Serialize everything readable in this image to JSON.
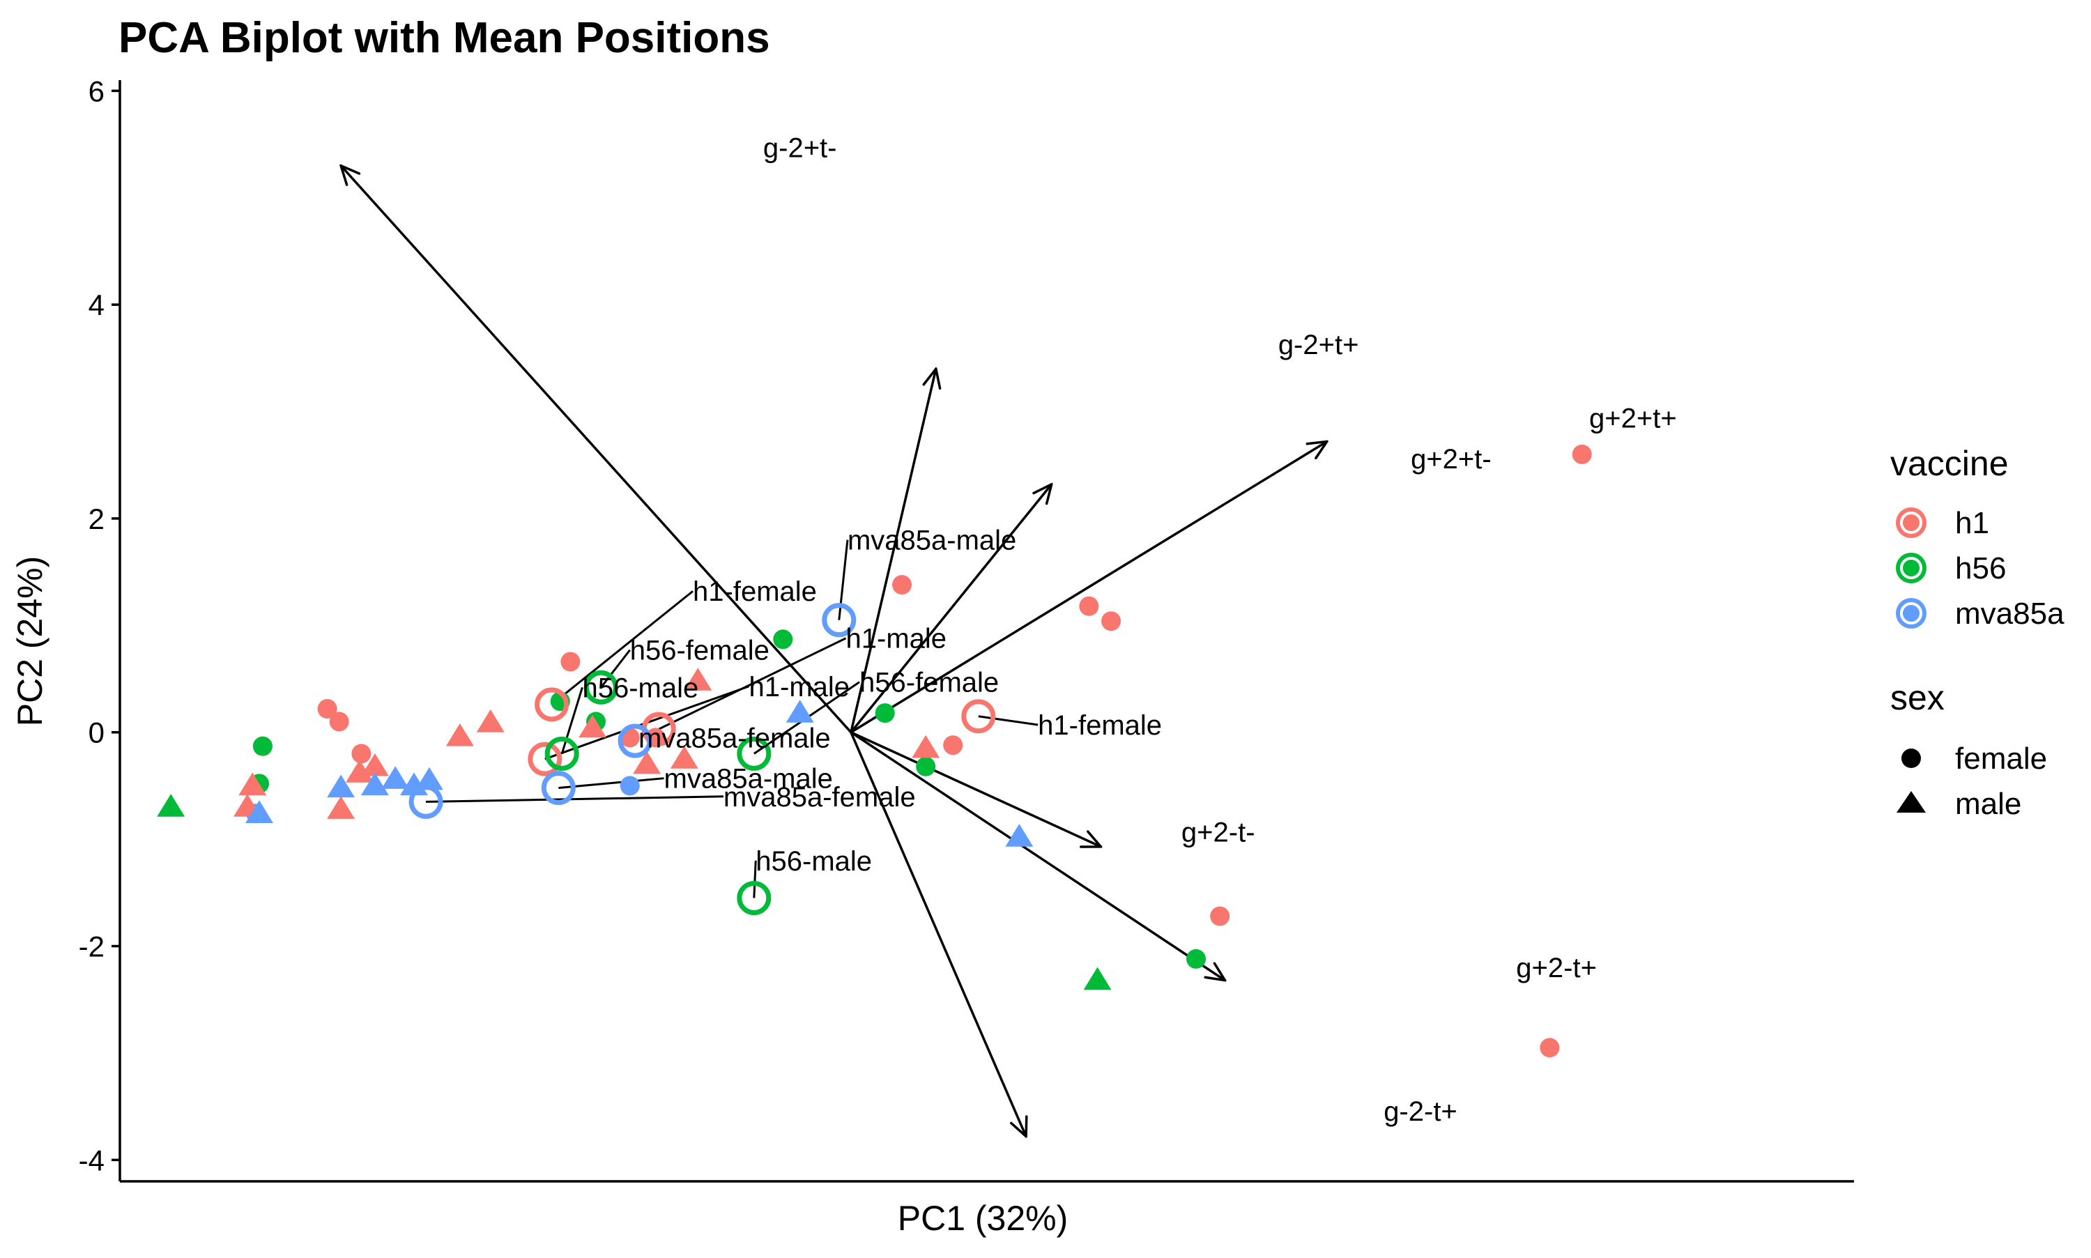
{
  "chart_data": {
    "type": "scatter",
    "title": "PCA Biplot with Mean Positions",
    "xlabel": "PC1 (32%)",
    "ylabel": "PC2 (24%)",
    "xlim": [
      -4.3,
      5.9
    ],
    "ylim": [
      -4.2,
      6.1
    ],
    "y_ticks": [
      -4,
      -2,
      0,
      2,
      4,
      6
    ],
    "x_ticks_visible": false,
    "grid": false,
    "legend_position": "right",
    "colors": {
      "h1": "#F8766D",
      "h56": "#00BA38",
      "mva85a": "#619CFF"
    },
    "legend": {
      "vaccine": {
        "title": "vaccine",
        "entries": [
          "h1",
          "h56",
          "mva85a"
        ]
      },
      "sex": {
        "title": "sex",
        "entries": [
          "female",
          "male"
        ],
        "shapes": [
          "circle",
          "triangle"
        ]
      }
    },
    "points": [
      {
        "x": 4.3,
        "y": 2.6,
        "vaccine": "h1",
        "sex": "female"
      },
      {
        "x": 0.3,
        "y": 1.38,
        "vaccine": "h1",
        "sex": "female"
      },
      {
        "x": 1.4,
        "y": 1.18,
        "vaccine": "h1",
        "sex": "female"
      },
      {
        "x": 1.53,
        "y": 1.04,
        "vaccine": "h1",
        "sex": "female"
      },
      {
        "x": -1.65,
        "y": 0.66,
        "vaccine": "h1",
        "sex": "female"
      },
      {
        "x": -3.08,
        "y": 0.22,
        "vaccine": "h1",
        "sex": "female"
      },
      {
        "x": -3.01,
        "y": 0.1,
        "vaccine": "h1",
        "sex": "female"
      },
      {
        "x": -2.88,
        "y": -0.2,
        "vaccine": "h1",
        "sex": "female"
      },
      {
        "x": 0.6,
        "y": -0.12,
        "vaccine": "h1",
        "sex": "female"
      },
      {
        "x": 2.17,
        "y": -1.72,
        "vaccine": "h1",
        "sex": "female"
      },
      {
        "x": 4.11,
        "y": -2.95,
        "vaccine": "h1",
        "sex": "female"
      },
      {
        "x": -1.15,
        "y": -0.05,
        "vaccine": "h1",
        "sex": "female"
      },
      {
        "x": -1.3,
        "y": -0.05,
        "vaccine": "h1",
        "sex": "female"
      },
      {
        "x": -0.4,
        "y": 0.87,
        "vaccine": "h56",
        "sex": "female"
      },
      {
        "x": -1.71,
        "y": 0.29,
        "vaccine": "h56",
        "sex": "female"
      },
      {
        "x": -3.46,
        "y": -0.13,
        "vaccine": "h56",
        "sex": "female"
      },
      {
        "x": -3.48,
        "y": -0.48,
        "vaccine": "h56",
        "sex": "female"
      },
      {
        "x": 0.2,
        "y": 0.18,
        "vaccine": "h56",
        "sex": "female"
      },
      {
        "x": 0.44,
        "y": -0.32,
        "vaccine": "h56",
        "sex": "female"
      },
      {
        "x": 2.03,
        "y": -2.12,
        "vaccine": "h56",
        "sex": "female"
      },
      {
        "x": -1.5,
        "y": 0.1,
        "vaccine": "h56",
        "sex": "female"
      },
      {
        "x": -1.3,
        "y": -0.5,
        "vaccine": "mva85a",
        "sex": "female"
      },
      {
        "x": -3.5,
        "y": -0.76,
        "vaccine": "mva85a",
        "sex": "female"
      },
      {
        "x": -0.9,
        "y": 0.48,
        "vaccine": "h1",
        "sex": "male"
      },
      {
        "x": -2.3,
        "y": -0.04,
        "vaccine": "h1",
        "sex": "male"
      },
      {
        "x": -2.12,
        "y": 0.09,
        "vaccine": "h1",
        "sex": "male"
      },
      {
        "x": -1.52,
        "y": 0.04,
        "vaccine": "h1",
        "sex": "male"
      },
      {
        "x": -2.8,
        "y": -0.32,
        "vaccine": "h1",
        "sex": "male"
      },
      {
        "x": -2.89,
        "y": -0.38,
        "vaccine": "h1",
        "sex": "male"
      },
      {
        "x": -3.52,
        "y": -0.5,
        "vaccine": "h1",
        "sex": "male"
      },
      {
        "x": -3.55,
        "y": -0.7,
        "vaccine": "h1",
        "sex": "male"
      },
      {
        "x": -3.0,
        "y": -0.72,
        "vaccine": "h1",
        "sex": "male"
      },
      {
        "x": 0.44,
        "y": -0.15,
        "vaccine": "h1",
        "sex": "male"
      },
      {
        "x": -1.2,
        "y": -0.3,
        "vaccine": "h1",
        "sex": "male"
      },
      {
        "x": -0.98,
        "y": -0.25,
        "vaccine": "h1",
        "sex": "male"
      },
      {
        "x": -4.0,
        "y": -0.7,
        "vaccine": "h56",
        "sex": "male"
      },
      {
        "x": 1.45,
        "y": -2.32,
        "vaccine": "h56",
        "sex": "male"
      },
      {
        "x": 0.99,
        "y": -0.98,
        "vaccine": "mva85a",
        "sex": "male"
      },
      {
        "x": -3.0,
        "y": -0.52,
        "vaccine": "mva85a",
        "sex": "male"
      },
      {
        "x": -2.8,
        "y": -0.5,
        "vaccine": "mva85a",
        "sex": "male"
      },
      {
        "x": -2.68,
        "y": -0.44,
        "vaccine": "mva85a",
        "sex": "male"
      },
      {
        "x": -2.57,
        "y": -0.5,
        "vaccine": "mva85a",
        "sex": "male"
      },
      {
        "x": -2.48,
        "y": -0.45,
        "vaccine": "mva85a",
        "sex": "male"
      },
      {
        "x": -3.48,
        "y": -0.76,
        "vaccine": "mva85a",
        "sex": "male"
      },
      {
        "x": -0.3,
        "y": 0.18,
        "vaccine": "mva85a",
        "sex": "male"
      }
    ],
    "means": [
      {
        "x": -1.76,
        "y": 0.26,
        "vaccine": "h1",
        "label": "h1-female",
        "label_x": -0.93,
        "label_y": 1.32
      },
      {
        "x": 0.75,
        "y": 0.15,
        "vaccine": "h1",
        "label": "h1-female",
        "label_x": 1.1,
        "label_y": 0.07
      },
      {
        "x": -1.8,
        "y": -0.25,
        "vaccine": "h1",
        "label": "h1-male",
        "label_x": -0.6,
        "label_y": 0.43
      },
      {
        "x": -1.13,
        "y": 0.03,
        "vaccine": "h1",
        "label": "h1-male",
        "label_x": -0.03,
        "label_y": 0.88
      },
      {
        "x": -1.47,
        "y": 0.42,
        "vaccine": "h56",
        "label": "h56-female",
        "label_x": -1.3,
        "label_y": 0.77
      },
      {
        "x": -0.57,
        "y": -0.2,
        "vaccine": "h56",
        "label": "h56-female",
        "label_x": 0.05,
        "label_y": 0.47
      },
      {
        "x": -1.7,
        "y": -0.2,
        "vaccine": "h56",
        "label": "h56-male",
        "label_x": -1.58,
        "label_y": 0.42
      },
      {
        "x": -0.57,
        "y": -1.55,
        "vaccine": "h56",
        "label": "h56-male",
        "label_x": -0.56,
        "label_y": -1.2
      },
      {
        "x": -0.07,
        "y": 1.05,
        "vaccine": "mva85a",
        "label": "mva85a-male",
        "label_x": -0.02,
        "label_y": 1.8
      },
      {
        "x": -1.27,
        "y": -0.08,
        "vaccine": "mva85a",
        "label": "mva85a-female",
        "label_x": -1.25,
        "label_y": -0.05
      },
      {
        "x": -2.5,
        "y": -0.65,
        "vaccine": "mva85a",
        "label": "mva85a-female",
        "label_x": -0.75,
        "label_y": -0.6
      },
      {
        "x": -1.72,
        "y": -0.52,
        "vaccine": "mva85a",
        "label": "mva85a-male",
        "label_x": -1.1,
        "label_y": -0.43
      }
    ],
    "loadings": [
      {
        "name": "g-2+t-",
        "x_end": -3.0,
        "y_end": 5.3,
        "label_x": -0.3,
        "label_y": 5.47
      },
      {
        "name": "g-2+t+",
        "x_end": 0.5,
        "y_end": 3.4,
        "label_x": 2.75,
        "label_y": 3.63
      },
      {
        "name": "g+2+t-",
        "x_end": 2.8,
        "y_end": 2.72,
        "label_x": 3.53,
        "label_y": 2.56
      },
      {
        "name": "g+2+t+",
        "x_end": 1.18,
        "y_end": 2.32,
        "label_x": 4.6,
        "label_y": 2.94
      },
      {
        "name": "g+2-t-",
        "x_end": 1.47,
        "y_end": -1.07,
        "label_x": 2.16,
        "label_y": -0.93
      },
      {
        "name": "g+2-t+",
        "x_end": 2.2,
        "y_end": -2.32,
        "label_x": 4.15,
        "label_y": -2.2
      },
      {
        "name": "g-2-t+",
        "x_end": 1.03,
        "y_end": -3.78,
        "label_x": 3.35,
        "label_y": -3.54
      }
    ]
  }
}
